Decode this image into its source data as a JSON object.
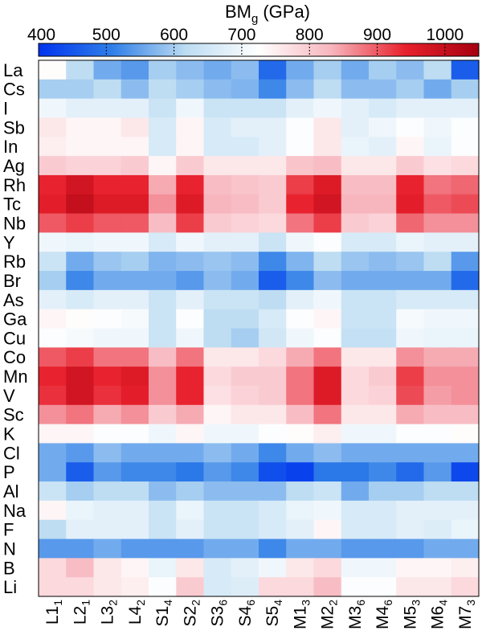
{
  "chart_data": {
    "type": "heatmap",
    "colorbar": {
      "title": "BM",
      "title_subscript": "g",
      "unit": "(GPa)",
      "range": [
        400,
        1050
      ],
      "ticks": [
        400,
        500,
        600,
        700,
        800,
        900,
        1000
      ],
      "colormap": [
        "#0033ee",
        "#2f7ee8",
        "#bcdcf2",
        "#ffffff",
        "#f7b4bc",
        "#e8202c",
        "#a60010"
      ]
    },
    "rows": [
      "La",
      "Cs",
      "I",
      "Sb",
      "In",
      "Ag",
      "Rh",
      "Tc",
      "Nb",
      "Y",
      "Rb",
      "Br",
      "As",
      "Ga",
      "Cu",
      "Co",
      "Mn",
      "V",
      "Sc",
      "K",
      "Cl",
      "P",
      "Al",
      "Na",
      "F",
      "N",
      "B",
      "Li"
    ],
    "columns": [
      {
        "base": "L1",
        "sub": "1"
      },
      {
        "base": "L2",
        "sub": "1"
      },
      {
        "base": "L3",
        "sub": "2"
      },
      {
        "base": "L4",
        "sub": "2"
      },
      {
        "base": "S1",
        "sub": "4"
      },
      {
        "base": "S2",
        "sub": "2"
      },
      {
        "base": "S3",
        "sub": "6"
      },
      {
        "base": "S4",
        "sub": "6"
      },
      {
        "base": "S5",
        "sub": "4"
      },
      {
        "base": "M1",
        "sub": "3"
      },
      {
        "base": "M2",
        "sub": "2"
      },
      {
        "base": "M3",
        "sub": "6"
      },
      {
        "base": "M4",
        "sub": "6"
      },
      {
        "base": "M5",
        "sub": "3"
      },
      {
        "base": "M6",
        "sub": "4"
      },
      {
        "base": "M7",
        "sub": "3"
      }
    ],
    "values": [
      [
        730,
        620,
        560,
        540,
        600,
        580,
        560,
        580,
        480,
        560,
        600,
        560,
        600,
        580,
        620,
        460
      ],
      [
        600,
        600,
        620,
        580,
        620,
        600,
        580,
        570,
        520,
        580,
        620,
        580,
        580,
        600,
        560,
        600
      ],
      [
        700,
        680,
        680,
        680,
        640,
        700,
        640,
        640,
        640,
        680,
        700,
        680,
        660,
        680,
        680,
        680
      ],
      [
        760,
        740,
        740,
        760,
        660,
        740,
        660,
        680,
        680,
        720,
        760,
        680,
        700,
        720,
        700,
        720
      ],
      [
        750,
        740,
        740,
        740,
        660,
        740,
        660,
        660,
        680,
        720,
        760,
        690,
        680,
        740,
        690,
        720
      ],
      [
        800,
        790,
        790,
        800,
        740,
        800,
        760,
        760,
        760,
        810,
        820,
        760,
        760,
        800,
        770,
        780
      ],
      [
        940,
        980,
        940,
        940,
        840,
        940,
        820,
        810,
        800,
        920,
        960,
        820,
        820,
        940,
        880,
        890
      ],
      [
        950,
        1000,
        960,
        960,
        860,
        960,
        830,
        820,
        800,
        940,
        980,
        830,
        830,
        950,
        900,
        910
      ],
      [
        900,
        920,
        900,
        900,
        820,
        920,
        800,
        790,
        780,
        880,
        920,
        800,
        790,
        890,
        860,
        860
      ],
      [
        700,
        690,
        700,
        700,
        660,
        700,
        680,
        680,
        640,
        700,
        720,
        660,
        660,
        690,
        680,
        680
      ],
      [
        640,
        560,
        590,
        600,
        570,
        580,
        590,
        580,
        520,
        570,
        620,
        590,
        580,
        590,
        620,
        540
      ],
      [
        600,
        520,
        560,
        560,
        560,
        540,
        580,
        560,
        460,
        520,
        580,
        560,
        560,
        560,
        560,
        480
      ],
      [
        680,
        660,
        680,
        680,
        640,
        680,
        640,
        640,
        620,
        680,
        700,
        640,
        640,
        660,
        660,
        660
      ],
      [
        740,
        730,
        720,
        710,
        640,
        720,
        620,
        620,
        660,
        720,
        740,
        640,
        640,
        710,
        700,
        700
      ],
      [
        720,
        710,
        700,
        700,
        640,
        700,
        620,
        600,
        650,
        700,
        720,
        630,
        630,
        700,
        690,
        690
      ],
      [
        900,
        920,
        880,
        880,
        820,
        880,
        760,
        760,
        780,
        840,
        880,
        760,
        760,
        860,
        840,
        840
      ],
      [
        940,
        980,
        940,
        960,
        860,
        940,
        780,
        800,
        800,
        880,
        960,
        780,
        800,
        920,
        860,
        860
      ],
      [
        930,
        980,
        930,
        950,
        860,
        940,
        770,
        790,
        800,
        880,
        960,
        780,
        790,
        910,
        850,
        860
      ],
      [
        860,
        880,
        840,
        860,
        800,
        840,
        740,
        760,
        760,
        820,
        880,
        760,
        760,
        840,
        820,
        820
      ],
      [
        740,
        740,
        720,
        720,
        700,
        740,
        700,
        700,
        720,
        730,
        750,
        700,
        700,
        720,
        720,
        730
      ],
      [
        560,
        540,
        580,
        560,
        560,
        560,
        580,
        560,
        520,
        560,
        580,
        560,
        560,
        560,
        560,
        560
      ],
      [
        560,
        460,
        540,
        520,
        520,
        500,
        540,
        520,
        440,
        420,
        500,
        500,
        520,
        480,
        540,
        430
      ],
      [
        640,
        600,
        620,
        620,
        580,
        600,
        580,
        580,
        580,
        620,
        640,
        560,
        600,
        600,
        620,
        620
      ],
      [
        740,
        690,
        680,
        680,
        640,
        690,
        640,
        640,
        660,
        690,
        700,
        660,
        660,
        680,
        680,
        680
      ],
      [
        620,
        680,
        680,
        680,
        640,
        680,
        640,
        640,
        660,
        680,
        740,
        660,
        660,
        680,
        670,
        690
      ],
      [
        540,
        540,
        560,
        540,
        540,
        540,
        560,
        560,
        520,
        560,
        560,
        540,
        540,
        540,
        560,
        560
      ],
      [
        780,
        820,
        760,
        740,
        690,
        760,
        660,
        680,
        700,
        760,
        780,
        700,
        700,
        740,
        740,
        750
      ],
      [
        780,
        780,
        760,
        750,
        720,
        800,
        660,
        670,
        780,
        780,
        820,
        720,
        720,
        760,
        760,
        780
      ]
    ]
  }
}
